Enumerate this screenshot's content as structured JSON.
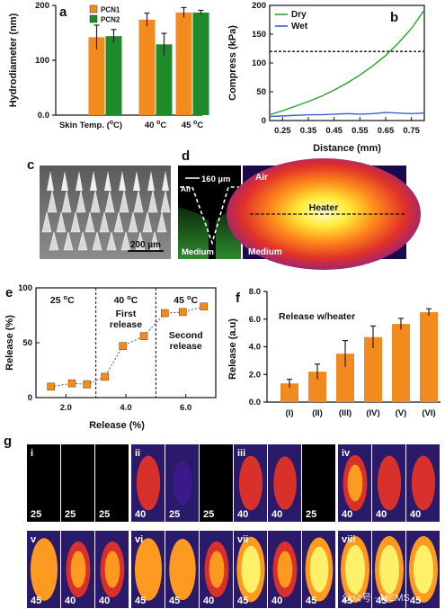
{
  "panel_labels": {
    "a": "a",
    "b": "b",
    "c": "c",
    "d": "d",
    "e": "e",
    "f": "f",
    "g": "g"
  },
  "chart_data": [
    {
      "panel": "a",
      "type": "bar",
      "categories": [
        "Skin Temp. (°C)",
        "40 °C",
        "45 °C"
      ],
      "tick_labels": [
        "Skin Temp. (",
        "oC)",
        "40 ",
        "oC",
        "45 ",
        "oC"
      ],
      "series": [
        {
          "name": "PCN1",
          "values": [
            142,
            174,
            187
          ],
          "errors": [
            22,
            12,
            9
          ],
          "color": "#f28a1e"
        },
        {
          "name": "PCN2",
          "values": [
            144,
            129,
            187
          ],
          "errors": [
            12,
            20,
            4
          ],
          "color": "#1f8a2a"
        }
      ],
      "ylabel": "Hydrodiameter (nm)",
      "ylim": [
        0,
        200
      ],
      "yticks": [
        0,
        100,
        200
      ],
      "ytick_labels": [
        "0.0",
        "100",
        "200"
      ]
    },
    {
      "panel": "b",
      "type": "line",
      "xlabel": "Distance (mm)",
      "ylabel": "Compress (kPa)",
      "xlim": [
        0.2,
        0.8
      ],
      "ylim": [
        0,
        200
      ],
      "xticks": [
        0.25,
        0.35,
        0.45,
        0.55,
        0.65,
        0.75
      ],
      "yticks": [
        0,
        50,
        100,
        150,
        200
      ],
      "hline": 120,
      "series": [
        {
          "name": "Dry",
          "color": "#2ca02c",
          "x": [
            0.2,
            0.25,
            0.3,
            0.35,
            0.4,
            0.45,
            0.5,
            0.55,
            0.6,
            0.65,
            0.7,
            0.75,
            0.8
          ],
          "y": [
            10,
            17,
            25,
            33,
            42,
            53,
            65,
            79,
            95,
            113,
            135,
            160,
            192
          ]
        },
        {
          "name": "Wet",
          "color": "#3a5fcd",
          "x": [
            0.2,
            0.25,
            0.3,
            0.35,
            0.4,
            0.45,
            0.5,
            0.55,
            0.6,
            0.65,
            0.7,
            0.75,
            0.8
          ],
          "y": [
            7,
            8,
            9,
            10,
            10,
            11,
            12,
            11,
            12,
            14,
            13,
            12,
            13
          ]
        }
      ]
    },
    {
      "panel": "e",
      "type": "scatter",
      "xlabel": "Release (%)",
      "ylabel": "Release (%)",
      "xlim": [
        1.0,
        7.0
      ],
      "ylim": [
        0,
        100
      ],
      "xticks": [
        2.0,
        4.0,
        6.0
      ],
      "yticks": [
        0,
        50,
        100
      ],
      "x": [
        1.5,
        2.2,
        2.7,
        3.3,
        3.9,
        4.6,
        5.3,
        5.9,
        6.6
      ],
      "y": [
        10,
        13,
        12,
        19,
        47,
        56,
        77,
        78,
        83
      ],
      "regions": [
        {
          "label": "25 °C",
          "label_main": "25 ",
          "label_unit": "oC",
          "x_end": 3.0
        },
        {
          "label": "40 °C",
          "label_main": "40 ",
          "label_unit": "oC",
          "note": [
            "First",
            "release"
          ],
          "x_end": 5.0
        },
        {
          "label": "45 °C",
          "label_main": "45 ",
          "label_unit": "oC",
          "note": [
            "Second",
            "release"
          ],
          "x_end": 7.0
        }
      ]
    },
    {
      "panel": "f",
      "type": "bar",
      "title": "Release w/heater",
      "ylabel": "Release (a.u)",
      "categories": [
        "(I)",
        "(II)",
        "(III)",
        "(IV)",
        "(V)",
        "(VI)"
      ],
      "values": [
        1.35,
        2.2,
        3.5,
        4.7,
        5.65,
        6.5
      ],
      "errors": [
        0.3,
        0.55,
        0.95,
        0.8,
        0.4,
        0.25
      ],
      "ylim": [
        0,
        8
      ],
      "yticks": [
        0,
        2,
        4,
        6,
        8
      ],
      "ytick_labels": [
        "0.0",
        "2.0",
        "4.0",
        "6.0",
        "8.0"
      ],
      "color": "#f28a1e"
    }
  ],
  "panel_c": {
    "scale": "200 µm"
  },
  "panel_d": {
    "scale": "160 µm",
    "air_left": "Air",
    "air_right": "Air",
    "heater": "Heater",
    "medium_left": "Medium",
    "medium_right": "Medium"
  },
  "panel_g": {
    "rows": [
      [
        {
          "roman": "i",
          "cells": [
            "25",
            "25",
            "25"
          ],
          "intensity": [
            0,
            0,
            0
          ]
        },
        {
          "roman": "ii",
          "cells": [
            "40",
            "25",
            "25"
          ],
          "intensity": [
            0.55,
            0.15,
            0
          ]
        },
        {
          "roman": "iii",
          "cells": [
            "40",
            "40",
            "25"
          ],
          "intensity": [
            0.55,
            0.5,
            0
          ]
        },
        {
          "roman": "iv",
          "cells": [
            "40",
            "40",
            "40"
          ],
          "intensity": [
            0.6,
            0.55,
            0.55
          ]
        }
      ],
      [
        {
          "roman": "v",
          "cells": [
            "45",
            "40",
            "40"
          ],
          "intensity": [
            0.85,
            0.6,
            0.6
          ]
        },
        {
          "roman": "vi",
          "cells": [
            "45",
            "45",
            "40"
          ],
          "intensity": [
            0.85,
            0.8,
            0.6
          ]
        },
        {
          "roman": "vii",
          "cells": [
            "45",
            "40",
            "45"
          ],
          "intensity": [
            0.95,
            0.6,
            0.9
          ]
        },
        {
          "roman": "viii",
          "cells": [
            "45",
            "45",
            "45"
          ],
          "intensity": [
            1.0,
            1.0,
            1.0
          ]
        }
      ]
    ],
    "watermark": "公众号 · MEMS"
  }
}
